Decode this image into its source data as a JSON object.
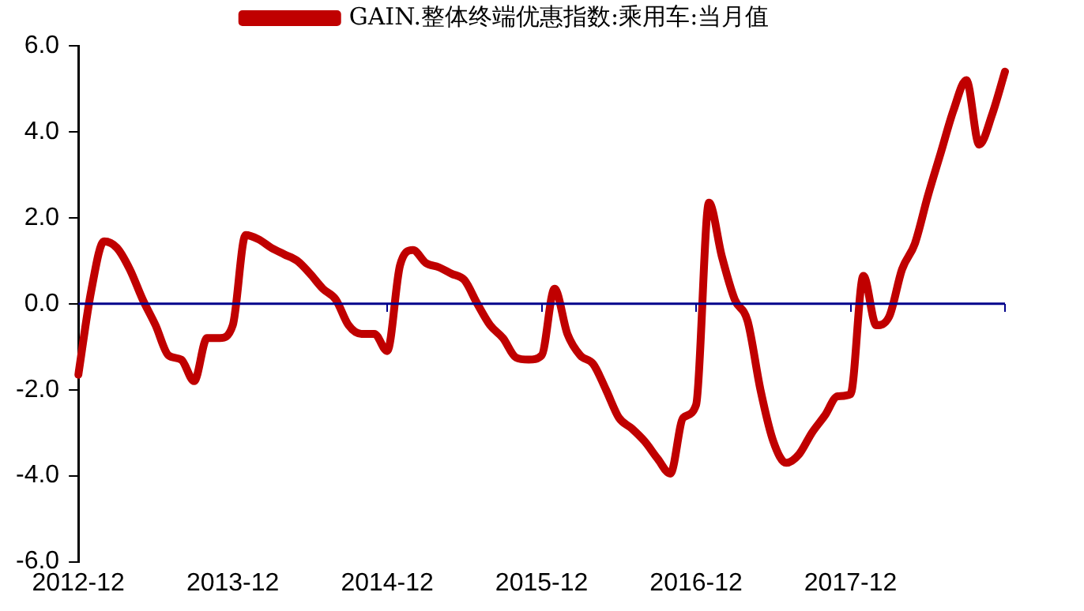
{
  "chart_data": {
    "type": "line",
    "categories": [
      "2012-12",
      null,
      null,
      null,
      null,
      null,
      null,
      null,
      null,
      null,
      null,
      null,
      "2013-12",
      null,
      null,
      null,
      null,
      null,
      null,
      null,
      null,
      null,
      null,
      null,
      "2014-12",
      null,
      null,
      null,
      null,
      null,
      null,
      null,
      null,
      null,
      null,
      null,
      "2015-12",
      null,
      null,
      null,
      null,
      null,
      null,
      null,
      null,
      null,
      null,
      null,
      "2016-12",
      null,
      null,
      null,
      null,
      null,
      null,
      null,
      null,
      null,
      null,
      null,
      "2017-12",
      null,
      null,
      null,
      null,
      null,
      null,
      null,
      null,
      null,
      null,
      null,
      null
    ],
    "series": [
      {
        "name": "GAIN.整体终端优惠指数:乘用车:当月值",
        "color": "#c00000",
        "values": [
          -1.65,
          0.3,
          1.45,
          1.3,
          0.8,
          0.1,
          -0.5,
          -1.2,
          -1.3,
          -1.8,
          -0.8,
          -0.8,
          -0.5,
          1.6,
          1.5,
          1.3,
          1.15,
          1.0,
          0.7,
          0.35,
          0.1,
          -0.5,
          -0.7,
          -0.7,
          -1.1,
          0.9,
          1.25,
          0.95,
          0.85,
          0.7,
          0.55,
          0.0,
          -0.5,
          -0.8,
          -1.25,
          -1.3,
          -1.2,
          0.35,
          -0.7,
          -1.2,
          -1.4,
          -2.0,
          -2.65,
          -2.9,
          -3.2,
          -3.6,
          -3.95,
          -2.65,
          -2.35,
          2.35,
          1.1,
          0.1,
          -0.4,
          -2.0,
          -3.2,
          -3.7,
          -3.5,
          -3.0,
          -2.6,
          -2.15,
          -2.1,
          0.65,
          -0.5,
          -0.3,
          0.8,
          1.4,
          2.5,
          3.5,
          4.5,
          5.2,
          3.7,
          4.4,
          5.4
        ]
      }
    ],
    "ylim": [
      -6,
      6
    ],
    "yticks": [
      {
        "value": -6,
        "label": "-6.0"
      },
      {
        "value": -4,
        "label": "-4.0"
      },
      {
        "value": -2,
        "label": "-2.0"
      },
      {
        "value": 0,
        "label": "0.0"
      },
      {
        "value": 2,
        "label": "2.0"
      },
      {
        "value": 4,
        "label": "4.0"
      },
      {
        "value": 6,
        "label": "6.0"
      }
    ],
    "ref_lines": [
      {
        "axis": "y",
        "value": 0,
        "color": "#00008b"
      }
    ],
    "grid": false,
    "legend": "top",
    "marker": "none",
    "line_style": "solid"
  }
}
